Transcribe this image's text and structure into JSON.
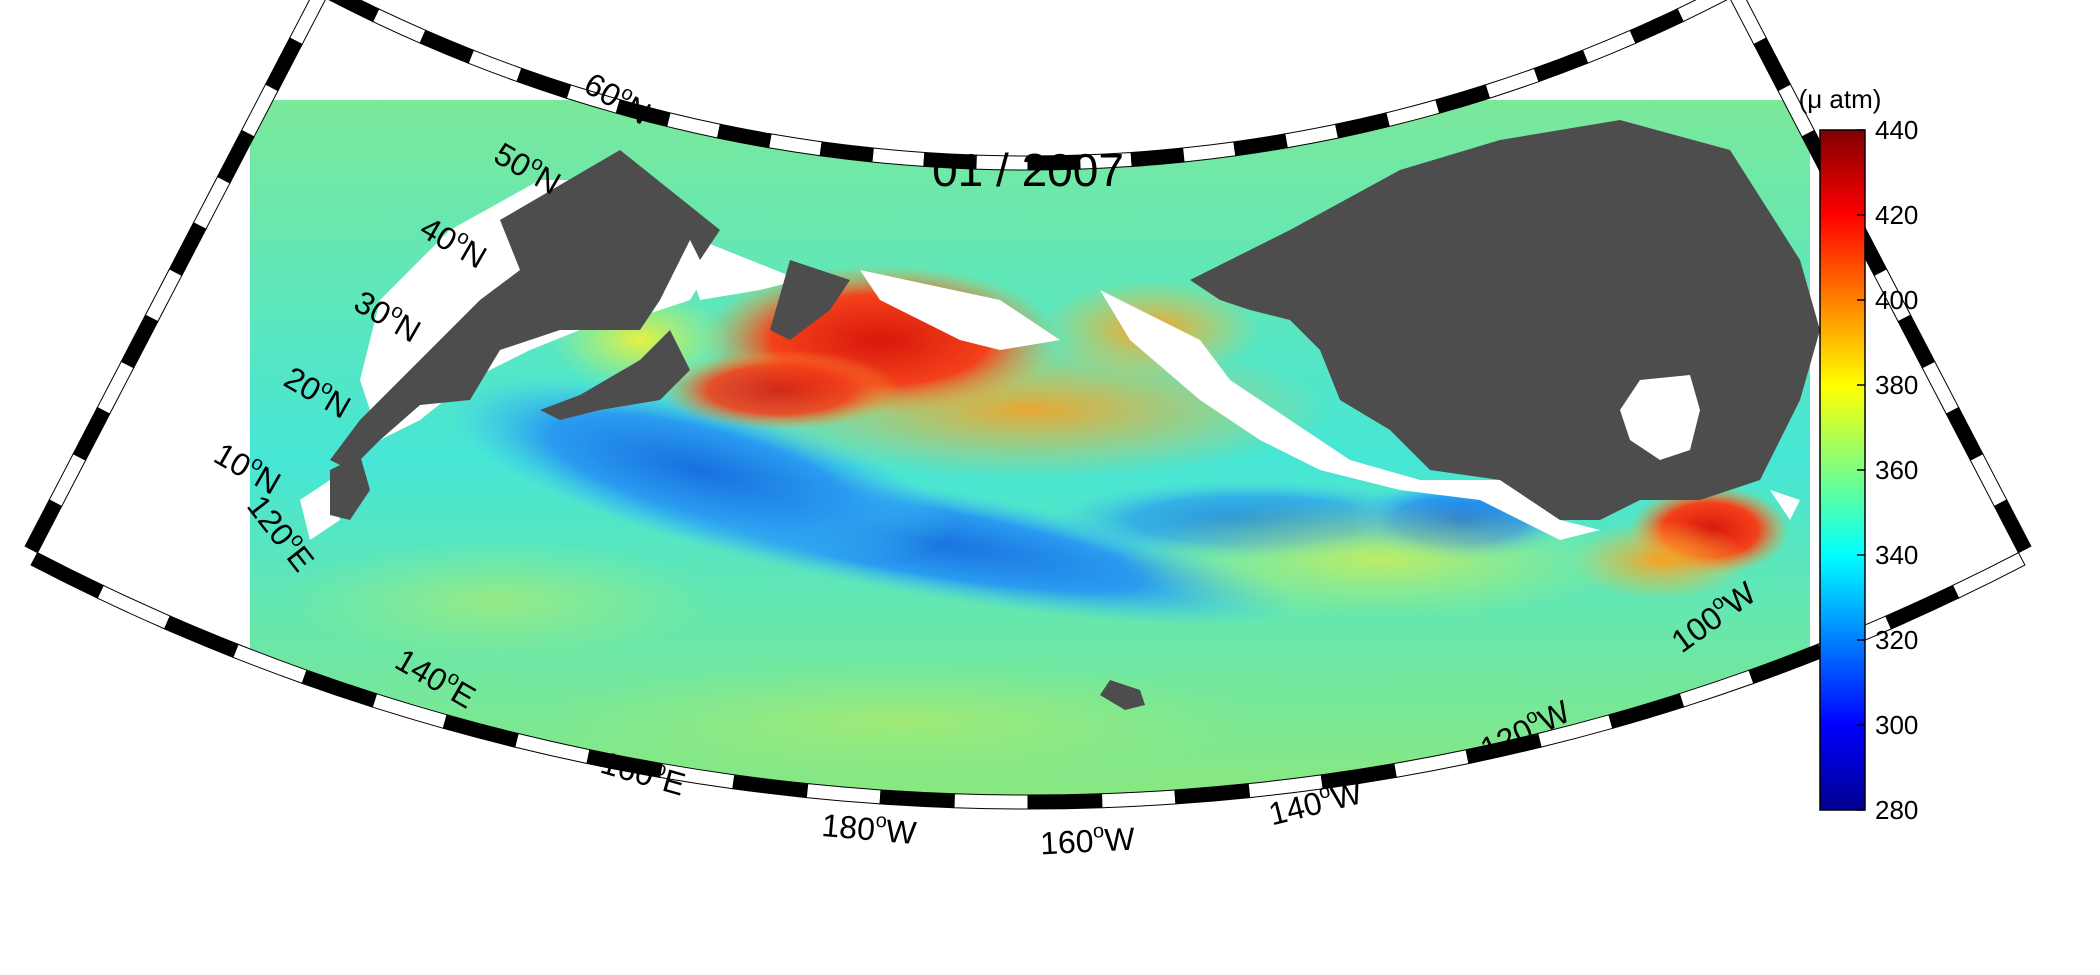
{
  "title": "01 / 2007",
  "colorbar": {
    "unit": "(μ atm)",
    "min": 280,
    "max": 440,
    "ticks": [
      "440",
      "420",
      "400",
      "380",
      "360",
      "340",
      "320",
      "300",
      "280"
    ],
    "colors": [
      "#00008f",
      "#0000ff",
      "#0080ff",
      "#00ffff",
      "#80ff80",
      "#ffff00",
      "#ff8000",
      "#ff0000",
      "#800000"
    ]
  },
  "latitude_labels": [
    {
      "deg": "60",
      "hemi": "N"
    },
    {
      "deg": "50",
      "hemi": "N"
    },
    {
      "deg": "40",
      "hemi": "N"
    },
    {
      "deg": "30",
      "hemi": "N"
    },
    {
      "deg": "20",
      "hemi": "N"
    },
    {
      "deg": "10",
      "hemi": "N"
    }
  ],
  "longitude_labels": [
    {
      "deg": "120",
      "hemi": "E"
    },
    {
      "deg": "140",
      "hemi": "E"
    },
    {
      "deg": "160",
      "hemi": "E"
    },
    {
      "deg": "180",
      "hemi": "W"
    },
    {
      "deg": "160",
      "hemi": "W"
    },
    {
      "deg": "140",
      "hemi": "W"
    },
    {
      "deg": "120",
      "hemi": "W"
    },
    {
      "deg": "100",
      "hemi": "W"
    }
  ],
  "style": {
    "land_color": "#4d4d4d",
    "nodata_color": "#ffffff",
    "frame_color": "#000000"
  }
}
